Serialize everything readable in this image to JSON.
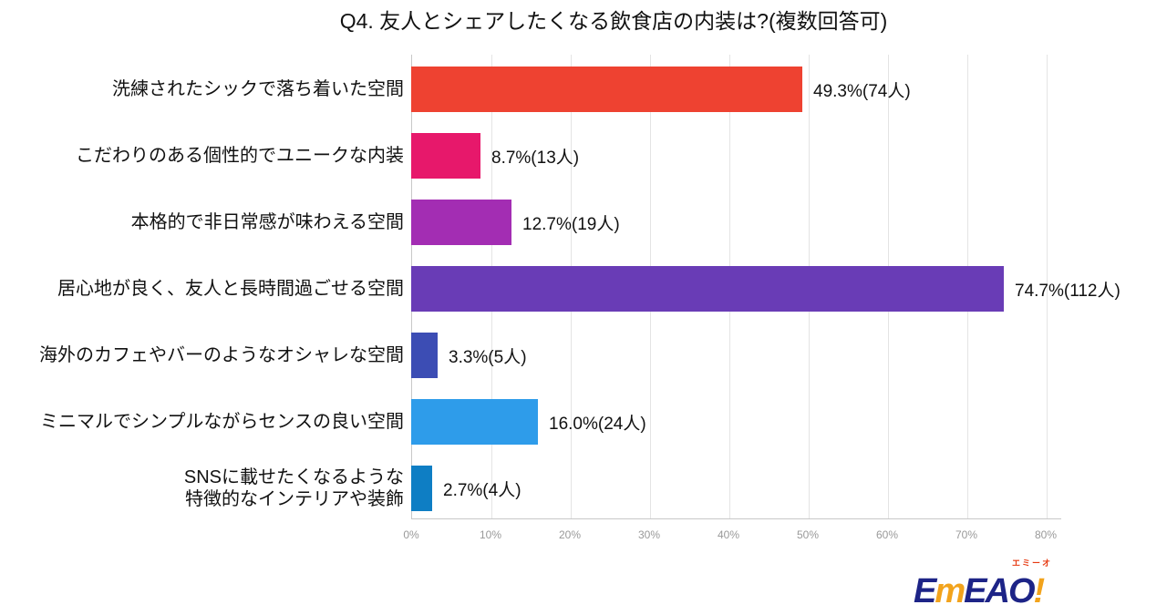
{
  "title": "Q4. 友人とシェアしたくなる飲食店の内装は?(複数回答可)",
  "chart_data": {
    "type": "bar",
    "orientation": "horizontal",
    "title": "Q4. 友人とシェアしたくなる飲食店の内装は?(複数回答可)",
    "xlabel": "",
    "ylabel": "",
    "xlim": [
      0,
      80
    ],
    "xticks": [
      "0%",
      "10%",
      "20%",
      "30%",
      "40%",
      "50%",
      "60%",
      "70%",
      "80%"
    ],
    "grid": true,
    "legend": false,
    "categories": [
      "洗練されたシックで落ち着いた空間",
      "こだわりのある個性的でユニークな内装",
      "本格的で非日常感が味わえる空間",
      "居心地が良く、友人と長時間過ごせる空間",
      "海外のカフェやバーのようなオシャレな空間",
      "ミニマルでシンプルながらセンスの良い空間",
      "SNSに載せたくなるような特徴的なインテリアや装飾"
    ],
    "values": [
      49.3,
      8.7,
      12.7,
      74.7,
      3.3,
      16.0,
      2.7
    ],
    "counts": [
      74,
      13,
      19,
      112,
      5,
      24,
      4
    ],
    "rows": [
      {
        "label": "洗練されたシックで落ち着いた空間",
        "label2": "",
        "pct": 49.3,
        "count": 74,
        "value_label": "49.3%(74人)",
        "color": "#ee4231"
      },
      {
        "label": "こだわりのある個性的でユニークな内装",
        "label2": "",
        "pct": 8.7,
        "count": 13,
        "value_label": "8.7%(13人)",
        "color": "#e7186b"
      },
      {
        "label": "本格的で非日常感が味わえる空間",
        "label2": "",
        "pct": 12.7,
        "count": 19,
        "value_label": "12.7%(19人)",
        "color": "#a32db3"
      },
      {
        "label": "居心地が良く、友人と長時間過ごせる空間",
        "label2": "",
        "pct": 74.7,
        "count": 112,
        "value_label": "74.7%(112人)",
        "color": "#693cb6"
      },
      {
        "label": "海外のカフェやバーのようなオシャレな空間",
        "label2": "",
        "pct": 3.3,
        "count": 5,
        "value_label": "3.3%(5人)",
        "color": "#3c4db4"
      },
      {
        "label": "ミニマルでシンプルながらセンスの良い空間",
        "label2": "",
        "pct": 16.0,
        "count": 24,
        "value_label": "16.0%(24人)",
        "color": "#2e9cea"
      },
      {
        "label": "SNSに載せたくなるような",
        "label2": "特徴的なインテリアや装飾",
        "pct": 2.7,
        "count": 4,
        "value_label": "2.7%(4人)",
        "color": "#0e7ec4"
      }
    ]
  },
  "logo": {
    "name": "EMEAO!",
    "kana": "エミーオ",
    "e1": "E",
    "m": "m",
    "rest": "EAO",
    "excl": "!",
    "navy": "#1d2487",
    "orange": "#f2a31c",
    "red": "#e6380f"
  }
}
